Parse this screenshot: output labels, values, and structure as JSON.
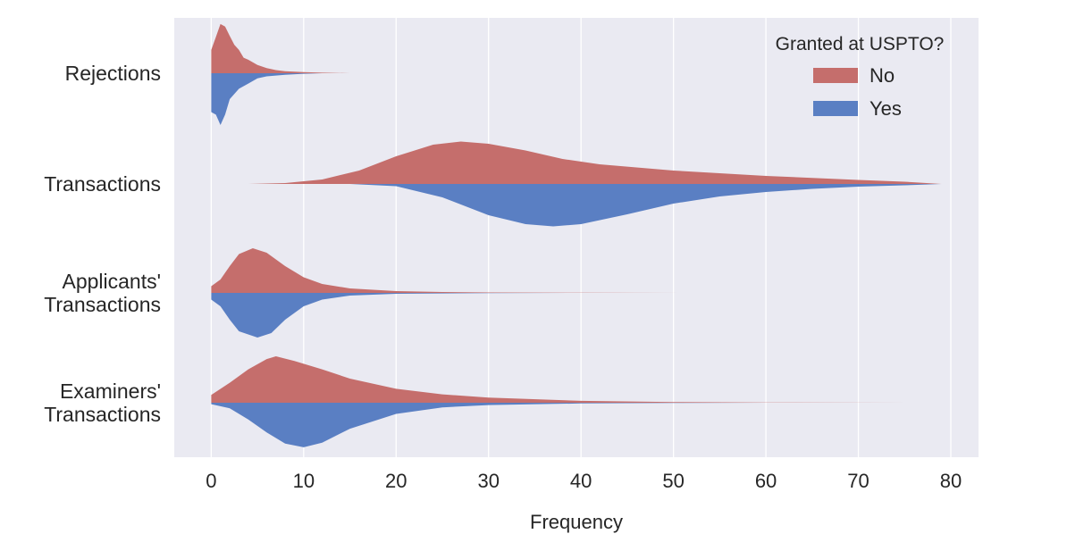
{
  "chart_data": {
    "type": "violin",
    "orientation": "horizontal",
    "split": true,
    "xlabel": "Frequency",
    "xlim": [
      -4,
      83
    ],
    "xticks": [
      0,
      10,
      20,
      30,
      40,
      50,
      60,
      70,
      80
    ],
    "grid": true,
    "legend": {
      "title": "Granted at USPTO?",
      "placement": "top-right",
      "entries": [
        {
          "label": "No",
          "color": "#c56e6c"
        },
        {
          "label": "Yes",
          "color": "#5a7fc3"
        }
      ]
    },
    "categories": [
      {
        "label_lines": [
          "Rejections"
        ]
      },
      {
        "label_lines": [
          "Transactions"
        ]
      },
      {
        "label_lines": [
          "Applicants'",
          "Transactions"
        ]
      },
      {
        "label_lines": [
          "Examiners'",
          "Transactions"
        ]
      }
    ],
    "density_profiles": [
      {
        "category": "Rejections",
        "No": [
          [
            0,
            0.45
          ],
          [
            0.5,
            0.7
          ],
          [
            1,
            0.95
          ],
          [
            1.5,
            0.9
          ],
          [
            2,
            0.72
          ],
          [
            2.5,
            0.55
          ],
          [
            3,
            0.45
          ],
          [
            3.5,
            0.3
          ],
          [
            4,
            0.26
          ],
          [
            5,
            0.16
          ],
          [
            6,
            0.1
          ],
          [
            7,
            0.06
          ],
          [
            8,
            0.04
          ],
          [
            10,
            0.02
          ],
          [
            12,
            0.01
          ],
          [
            15,
            0
          ]
        ],
        "Yes": [
          [
            0,
            0.75
          ],
          [
            0.5,
            0.8
          ],
          [
            1,
            1.0
          ],
          [
            1.5,
            0.8
          ],
          [
            2,
            0.5
          ],
          [
            3,
            0.3
          ],
          [
            4,
            0.2
          ],
          [
            5,
            0.1
          ],
          [
            6,
            0.06
          ],
          [
            8,
            0.03
          ],
          [
            10,
            0.01
          ],
          [
            12,
            0
          ]
        ]
      },
      {
        "category": "Transactions",
        "No": [
          [
            4,
            0
          ],
          [
            8,
            0.02
          ],
          [
            12,
            0.1
          ],
          [
            16,
            0.3
          ],
          [
            20,
            0.62
          ],
          [
            24,
            0.88
          ],
          [
            27,
            0.95
          ],
          [
            30,
            0.9
          ],
          [
            34,
            0.75
          ],
          [
            38,
            0.56
          ],
          [
            42,
            0.44
          ],
          [
            50,
            0.3
          ],
          [
            60,
            0.18
          ],
          [
            70,
            0.09
          ],
          [
            75,
            0.05
          ],
          [
            79,
            0
          ]
        ],
        "Yes": [
          [
            15,
            0
          ],
          [
            20,
            0.05
          ],
          [
            25,
            0.3
          ],
          [
            30,
            0.7
          ],
          [
            34,
            0.9
          ],
          [
            37,
            0.95
          ],
          [
            40,
            0.9
          ],
          [
            45,
            0.68
          ],
          [
            50,
            0.44
          ],
          [
            55,
            0.28
          ],
          [
            60,
            0.18
          ],
          [
            65,
            0.11
          ],
          [
            70,
            0.06
          ],
          [
            75,
            0.03
          ],
          [
            79,
            0
          ]
        ]
      },
      {
        "category": "Applicants' Transactions",
        "No": [
          [
            0,
            0.15
          ],
          [
            1,
            0.3
          ],
          [
            2,
            0.6
          ],
          [
            3,
            0.87
          ],
          [
            4.5,
            1.0
          ],
          [
            6,
            0.9
          ],
          [
            8,
            0.6
          ],
          [
            10,
            0.35
          ],
          [
            12,
            0.2
          ],
          [
            15,
            0.1
          ],
          [
            20,
            0.04
          ],
          [
            25,
            0.02
          ],
          [
            30,
            0.01
          ],
          [
            40,
            0.004
          ],
          [
            55,
            0
          ]
        ],
        "Yes": [
          [
            0,
            0.15
          ],
          [
            1,
            0.3
          ],
          [
            2,
            0.6
          ],
          [
            3,
            0.86
          ],
          [
            5,
            1.0
          ],
          [
            6.5,
            0.9
          ],
          [
            8,
            0.6
          ],
          [
            10,
            0.3
          ],
          [
            12,
            0.15
          ],
          [
            15,
            0.06
          ],
          [
            20,
            0.02
          ],
          [
            30,
            0.005
          ],
          [
            40,
            0
          ]
        ]
      },
      {
        "category": "Examiners' Transactions",
        "No": [
          [
            0,
            0.17
          ],
          [
            2,
            0.43
          ],
          [
            4,
            0.72
          ],
          [
            6,
            0.94
          ],
          [
            7,
            1.0
          ],
          [
            9,
            0.9
          ],
          [
            12,
            0.72
          ],
          [
            15,
            0.52
          ],
          [
            20,
            0.3
          ],
          [
            25,
            0.18
          ],
          [
            30,
            0.11
          ],
          [
            40,
            0.04
          ],
          [
            50,
            0.015
          ],
          [
            60,
            0.006
          ],
          [
            77,
            0
          ]
        ],
        "Yes": [
          [
            0,
            0.03
          ],
          [
            2,
            0.12
          ],
          [
            4,
            0.36
          ],
          [
            6,
            0.64
          ],
          [
            8,
            0.88
          ],
          [
            10,
            0.96
          ],
          [
            12,
            0.86
          ],
          [
            15,
            0.56
          ],
          [
            20,
            0.24
          ],
          [
            25,
            0.1
          ],
          [
            30,
            0.05
          ],
          [
            40,
            0.015
          ],
          [
            50,
            0.005
          ],
          [
            60,
            0
          ]
        ]
      }
    ]
  }
}
